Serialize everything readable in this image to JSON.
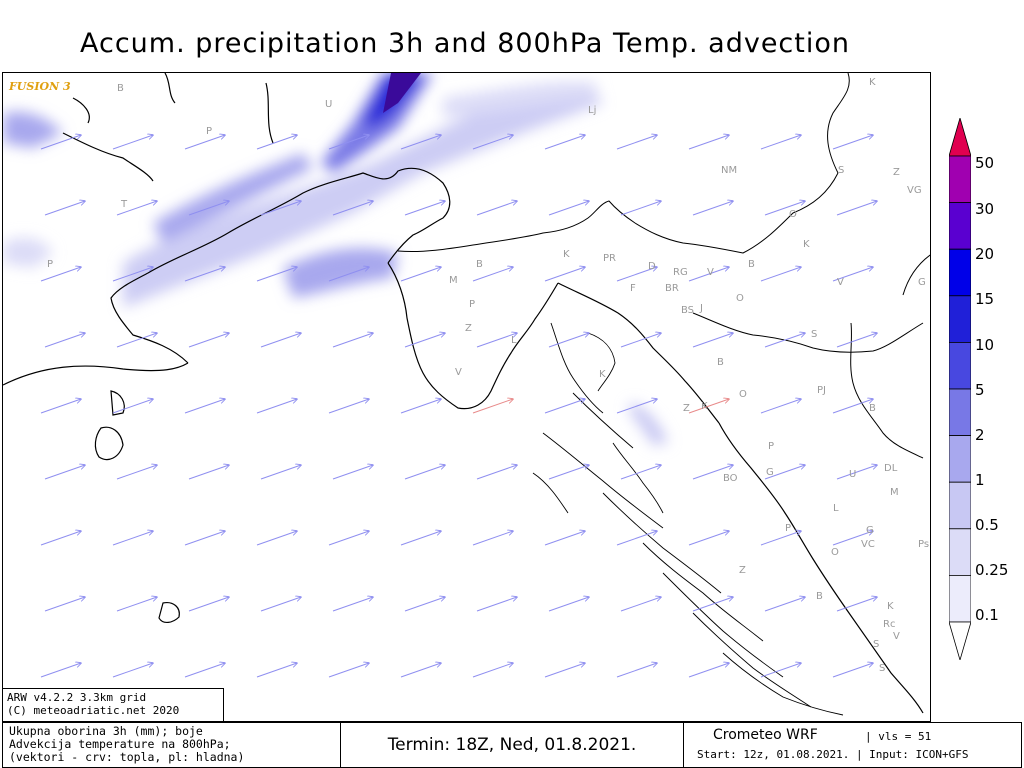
{
  "title": "Accum. precipitation 3h and 800hPa Temp. advection",
  "brand": "FUSION 3",
  "credit": {
    "line1": "ARW v4.2.2 3.3km grid",
    "line2": "(C) meteoadriatic.net 2020"
  },
  "footer": {
    "desc1": "Ukupna oborina 3h (mm); boje",
    "desc2": "Advekcija temperature na 800hPa;",
    "desc3": "(vektori - crv: topla, pl: hladna)",
    "termin": "Termin: 18Z, Ned, 01.8.2021.",
    "model": "Crometeo WRF",
    "vls": "| vls = 51",
    "run": "Start: 12z, 01.08.2021. | Input: ICON+GFS"
  },
  "colors": {
    "cold_vector": "#8f8ff0",
    "warm_vector": "#e88a8a",
    "coast": "#000000",
    "place_label": "#9a9a9a"
  },
  "chart_data": {
    "type": "heatmap",
    "title": "Accum. precipitation 3h and 800hPa Temp. advection",
    "colorbar": {
      "levels": [
        "0.1",
        "0.25",
        "0.5",
        "1",
        "2",
        "5",
        "10",
        "15",
        "20",
        "30",
        "50"
      ],
      "colors": [
        "#ffffff",
        "#ececfb",
        "#dcdcf7",
        "#c8c8f3",
        "#a8a8ee",
        "#7878e6",
        "#4848e0",
        "#2020d8",
        "#0000e8",
        "#5a00d0",
        "#a000b0",
        "#e00050"
      ]
    },
    "place_labels": [
      "B",
      "U",
      "P",
      "T",
      "P",
      "Lj",
      "K",
      "NM",
      "S",
      "Z",
      "VG",
      "O",
      "K",
      "G",
      "P",
      "M",
      "B",
      "K",
      "PR",
      "D",
      "RG",
      "V",
      "B",
      "F",
      "BR",
      "BS",
      "J",
      "O",
      "V",
      "P",
      "Z",
      "L",
      "S",
      "K",
      "B",
      "O",
      "PJ",
      "Z",
      "K",
      "B",
      "V",
      "P",
      "G",
      "BO",
      "U",
      "DL",
      "M",
      "L",
      "P",
      "G",
      "VC",
      "Ps",
      "O",
      "K",
      "Z",
      "B",
      "K",
      "Rc",
      "V",
      "S",
      "S",
      "P"
    ]
  }
}
